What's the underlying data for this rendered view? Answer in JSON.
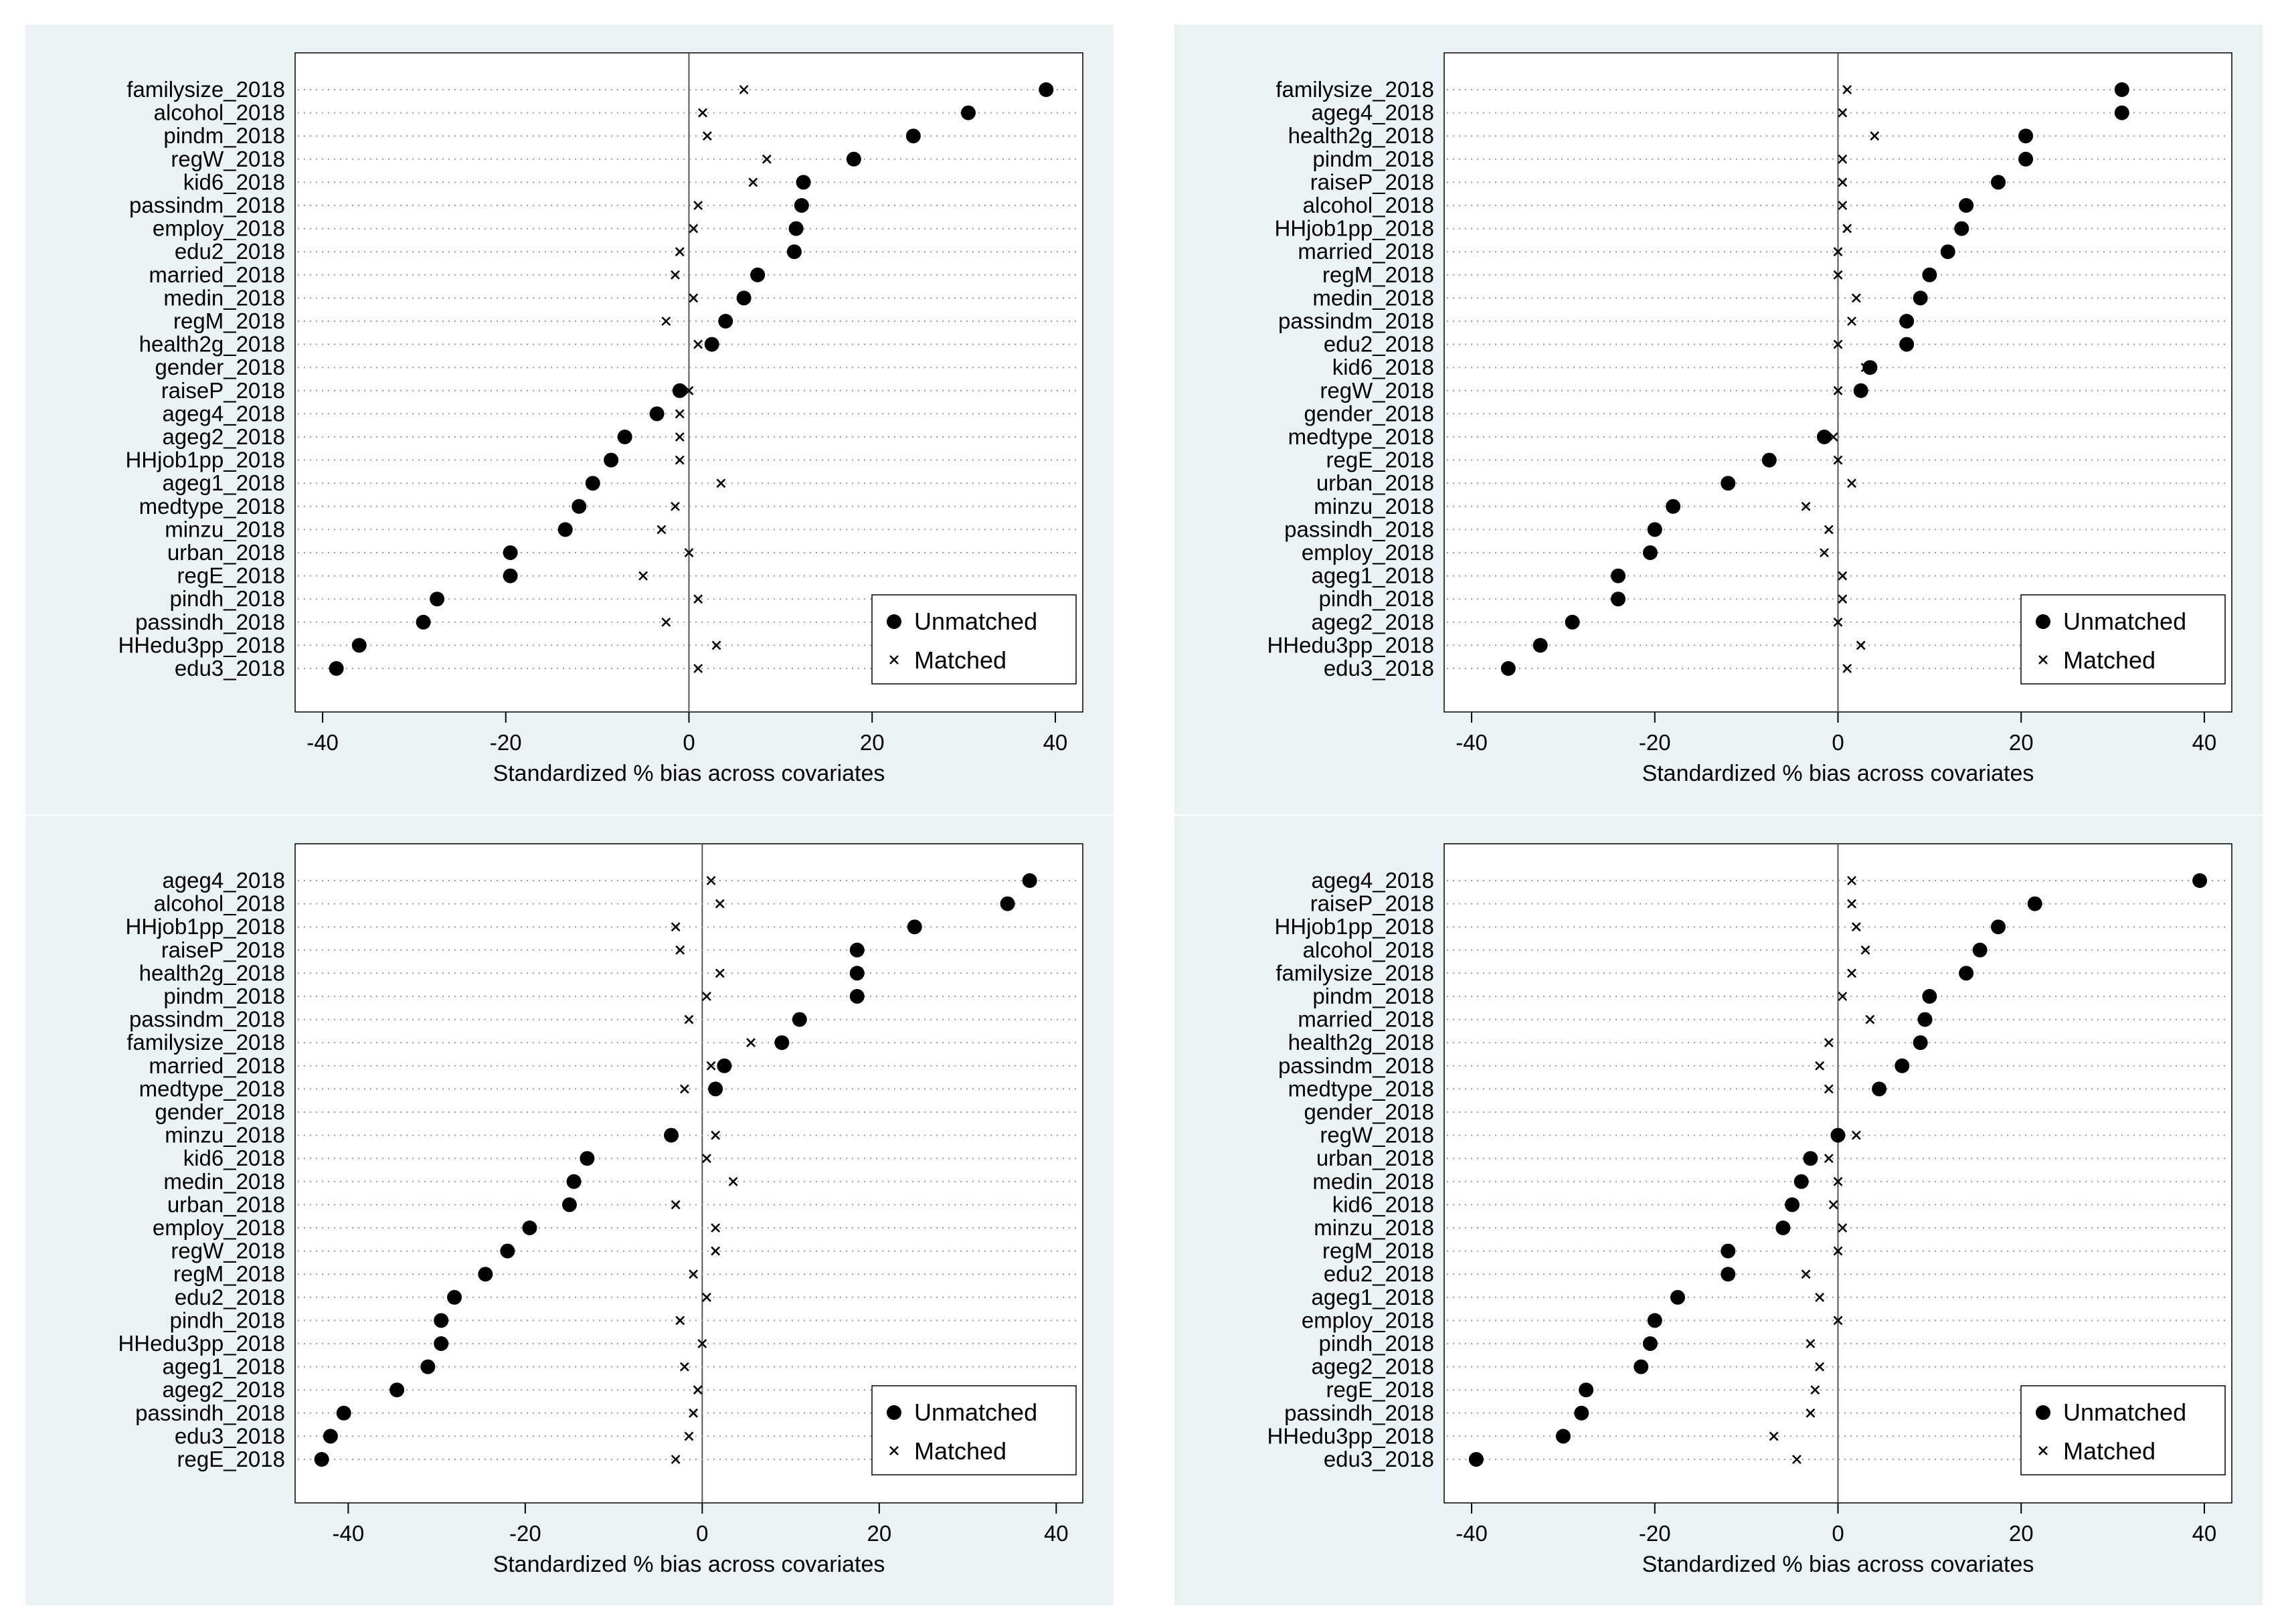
{
  "legend": {
    "unmatched": "Unmatched",
    "matched": "Matched"
  },
  "colors": {
    "panel_bg": "#eaf2f3",
    "plot_bg": "#ffffff",
    "marker": "#000000",
    "grid": "#9a9a9a"
  },
  "chart_data": [
    {
      "type": "scatter",
      "position": "top-left",
      "title": "",
      "xlabel": "Standardized % bias across covariates",
      "xlim": [
        -43,
        43
      ],
      "xticks": [
        "-40",
        "-20",
        "0",
        "20",
        "40"
      ],
      "xtick_values": [
        -40,
        -20,
        0,
        20,
        40
      ],
      "legend_position": "bottom-right",
      "categories": [
        "familysize_2018",
        "alcohol_2018",
        "pindm_2018",
        "regW_2018",
        "kid6_2018",
        "passindm_2018",
        "employ_2018",
        "edu2_2018",
        "married_2018",
        "medin_2018",
        "regM_2018",
        "health2g_2018",
        "gender_2018",
        "raiseP_2018",
        "ageg4_2018",
        "ageg2_2018",
        "HHjob1pp_2018",
        "ageg1_2018",
        "medtype_2018",
        "minzu_2018",
        "urban_2018",
        "regE_2018",
        "pindh_2018",
        "passindh_2018",
        "HHedu3pp_2018",
        "edu3_2018"
      ],
      "series": [
        {
          "name": "Unmatched",
          "marker": "circle",
          "values": [
            39,
            30.5,
            24.5,
            18,
            12.5,
            12.3,
            11.7,
            11.5,
            7.5,
            6,
            4,
            2.5,
            null,
            -1,
            -3.5,
            -7,
            -8.5,
            -10.5,
            -12,
            -13.5,
            -19.5,
            -19.5,
            -27.5,
            -29,
            -36,
            -38.5
          ]
        },
        {
          "name": "Matched",
          "marker": "x",
          "values": [
            6,
            1.5,
            2,
            8.5,
            7,
            1,
            0.5,
            -1,
            -1.5,
            0.5,
            -2.5,
            1,
            null,
            0,
            -1,
            -1,
            -1,
            3.5,
            -1.5,
            -3,
            0,
            -5,
            1,
            -2.5,
            3,
            1
          ]
        }
      ]
    },
    {
      "type": "scatter",
      "position": "top-right",
      "title": "",
      "xlabel": "Standardized % bias across covariates",
      "xlim": [
        -43,
        43
      ],
      "xticks": [
        "-40",
        "-20",
        "0",
        "20",
        "40"
      ],
      "xtick_values": [
        -40,
        -20,
        0,
        20,
        40
      ],
      "legend_position": "bottom-right",
      "categories": [
        "familysize_2018",
        "ageg4_2018",
        "health2g_2018",
        "pindm_2018",
        "raiseP_2018",
        "alcohol_2018",
        "HHjob1pp_2018",
        "married_2018",
        "regM_2018",
        "medin_2018",
        "passindm_2018",
        "edu2_2018",
        "kid6_2018",
        "regW_2018",
        "gender_2018",
        "medtype_2018",
        "regE_2018",
        "urban_2018",
        "minzu_2018",
        "passindh_2018",
        "employ_2018",
        "ageg1_2018",
        "pindh_2018",
        "ageg2_2018",
        "HHedu3pp_2018",
        "edu3_2018"
      ],
      "series": [
        {
          "name": "Unmatched",
          "marker": "circle",
          "values": [
            31,
            31,
            20.5,
            20.5,
            17.5,
            14,
            13.5,
            12,
            10,
            9,
            7.5,
            7.5,
            3.5,
            2.5,
            null,
            -1.5,
            -7.5,
            -12,
            -18,
            -20,
            -20.5,
            -24,
            -24,
            -29,
            -32.5,
            -36
          ]
        },
        {
          "name": "Matched",
          "marker": "x",
          "values": [
            1,
            0.5,
            4,
            0.5,
            0.5,
            0.5,
            1,
            0,
            0,
            2,
            1.5,
            0,
            3,
            0,
            null,
            -0.5,
            0,
            1.5,
            -3.5,
            -1,
            -1.5,
            0.5,
            0.5,
            0,
            2.5,
            1
          ]
        }
      ]
    },
    {
      "type": "scatter",
      "position": "bottom-left",
      "title": "",
      "xlabel": "Standardized % bias across covariates",
      "xlim": [
        -46,
        43
      ],
      "xticks": [
        "-40",
        "-20",
        "0",
        "20",
        "40"
      ],
      "xtick_values": [
        -40,
        -20,
        0,
        20,
        40
      ],
      "legend_position": "bottom-right",
      "categories": [
        "ageg4_2018",
        "alcohol_2018",
        "HHjob1pp_2018",
        "raiseP_2018",
        "health2g_2018",
        "pindm_2018",
        "passindm_2018",
        "familysize_2018",
        "married_2018",
        "medtype_2018",
        "gender_2018",
        "minzu_2018",
        "kid6_2018",
        "medin_2018",
        "urban_2018",
        "employ_2018",
        "regW_2018",
        "regM_2018",
        "edu2_2018",
        "pindh_2018",
        "HHedu3pp_2018",
        "ageg1_2018",
        "ageg2_2018",
        "passindh_2018",
        "edu3_2018",
        "regE_2018"
      ],
      "series": [
        {
          "name": "Unmatched",
          "marker": "circle",
          "values": [
            37,
            34.5,
            24,
            17.5,
            17.5,
            17.5,
            11,
            9,
            2.5,
            1.5,
            null,
            -3.5,
            -13,
            -14.5,
            -15,
            -19.5,
            -22,
            -24.5,
            -28,
            -29.5,
            -29.5,
            -31,
            -34.5,
            -40.5,
            -42,
            -43
          ]
        },
        {
          "name": "Matched",
          "marker": "x",
          "values": [
            1,
            2,
            -3,
            -2.5,
            2,
            0.5,
            -1.5,
            5.5,
            1,
            -2,
            null,
            1.5,
            0.5,
            3.5,
            -3,
            1.5,
            1.5,
            -1,
            0.5,
            -2.5,
            0,
            -2,
            -0.5,
            -1,
            -1.5,
            -3
          ]
        }
      ]
    },
    {
      "type": "scatter",
      "position": "bottom-right",
      "title": "",
      "xlabel": "Standardized % bias across covariates",
      "xlim": [
        -43,
        43
      ],
      "xticks": [
        "-40",
        "-20",
        "0",
        "20",
        "40"
      ],
      "xtick_values": [
        -40,
        -20,
        0,
        20,
        40
      ],
      "legend_position": "bottom-right",
      "categories": [
        "ageg4_2018",
        "raiseP_2018",
        "HHjob1pp_2018",
        "alcohol_2018",
        "familysize_2018",
        "pindm_2018",
        "married_2018",
        "health2g_2018",
        "passindm_2018",
        "medtype_2018",
        "gender_2018",
        "regW_2018",
        "urban_2018",
        "medin_2018",
        "kid6_2018",
        "minzu_2018",
        "regM_2018",
        "edu2_2018",
        "ageg1_2018",
        "employ_2018",
        "pindh_2018",
        "ageg2_2018",
        "regE_2018",
        "passindh_2018",
        "HHedu3pp_2018",
        "edu3_2018"
      ],
      "series": [
        {
          "name": "Unmatched",
          "marker": "circle",
          "values": [
            39.5,
            21.5,
            17.5,
            15.5,
            14,
            10,
            9.5,
            9,
            7,
            4.5,
            null,
            0,
            -3,
            -4,
            -5,
            -6,
            -12,
            -12,
            -17.5,
            -20,
            -20.5,
            -21.5,
            -27.5,
            -28,
            -30,
            -39.5
          ]
        },
        {
          "name": "Matched",
          "marker": "x",
          "values": [
            1.5,
            1.5,
            2,
            3,
            1.5,
            0.5,
            3.5,
            -1,
            -2,
            -1,
            null,
            2,
            -1,
            0,
            -0.5,
            0.5,
            0,
            -3.5,
            -2,
            0,
            -3,
            -2,
            -2.5,
            -3,
            -7,
            -4.5
          ]
        }
      ]
    }
  ]
}
